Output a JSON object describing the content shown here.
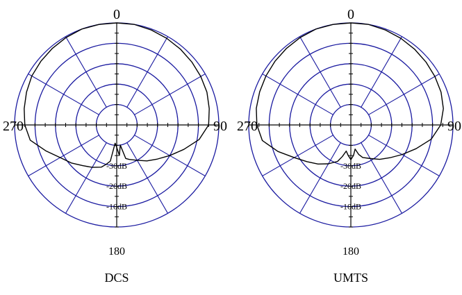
{
  "chart_data": [
    {
      "type": "polar",
      "title": "DCS",
      "angle_labels": {
        "top": "0",
        "right": "90",
        "bottom": "180",
        "left": "270"
      },
      "ring_labels": [
        "-30dB",
        "-20dB",
        "-10dB"
      ],
      "series": [
        {
          "theta": [
            0,
            10,
            20,
            30,
            40,
            50,
            60,
            70,
            80,
            90,
            100,
            110,
            120,
            130,
            140,
            150,
            160,
            165,
            170,
            175,
            180,
            185,
            190,
            195,
            200,
            210,
            220,
            230,
            240,
            250,
            260,
            270,
            280,
            290,
            300,
            310,
            320,
            330,
            340,
            350
          ],
          "r": [
            1.0,
            1.0,
            0.99,
            0.98,
            0.97,
            0.96,
            0.95,
            0.94,
            0.92,
            0.9,
            0.82,
            0.7,
            0.6,
            0.52,
            0.46,
            0.4,
            0.36,
            0.34,
            0.2,
            0.3,
            0.22,
            0.18,
            0.36,
            0.4,
            0.44,
            0.48,
            0.52,
            0.58,
            0.64,
            0.74,
            0.86,
            0.9,
            0.92,
            0.94,
            0.96,
            0.97,
            0.98,
            0.99,
            1.0,
            1.0
          ]
        }
      ]
    },
    {
      "type": "polar",
      "title": "UMTS",
      "angle_labels": {
        "top": "0",
        "right": "90",
        "bottom": "180",
        "left": "270"
      },
      "ring_labels": [
        "-30dB",
        "-20dB",
        "-10dB"
      ],
      "series": [
        {
          "theta": [
            0,
            10,
            20,
            30,
            40,
            50,
            60,
            70,
            80,
            90,
            100,
            110,
            120,
            130,
            140,
            150,
            160,
            165,
            170,
            175,
            180,
            185,
            190,
            195,
            200,
            210,
            220,
            230,
            240,
            250,
            260,
            270,
            280,
            290,
            300,
            310,
            320,
            330,
            340,
            350
          ],
          "r": [
            1.0,
            1.0,
            0.99,
            0.98,
            0.97,
            0.96,
            0.95,
            0.94,
            0.92,
            0.88,
            0.8,
            0.68,
            0.58,
            0.5,
            0.44,
            0.38,
            0.34,
            0.3,
            0.24,
            0.3,
            0.34,
            0.3,
            0.26,
            0.32,
            0.38,
            0.44,
            0.5,
            0.56,
            0.64,
            0.76,
            0.88,
            0.92,
            0.94,
            0.95,
            0.96,
            0.97,
            0.98,
            0.99,
            1.0,
            1.0
          ]
        }
      ]
    }
  ]
}
